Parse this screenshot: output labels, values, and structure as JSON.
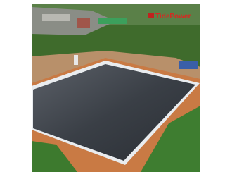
{
  "watermark": {
    "text": "TidePower"
  }
}
